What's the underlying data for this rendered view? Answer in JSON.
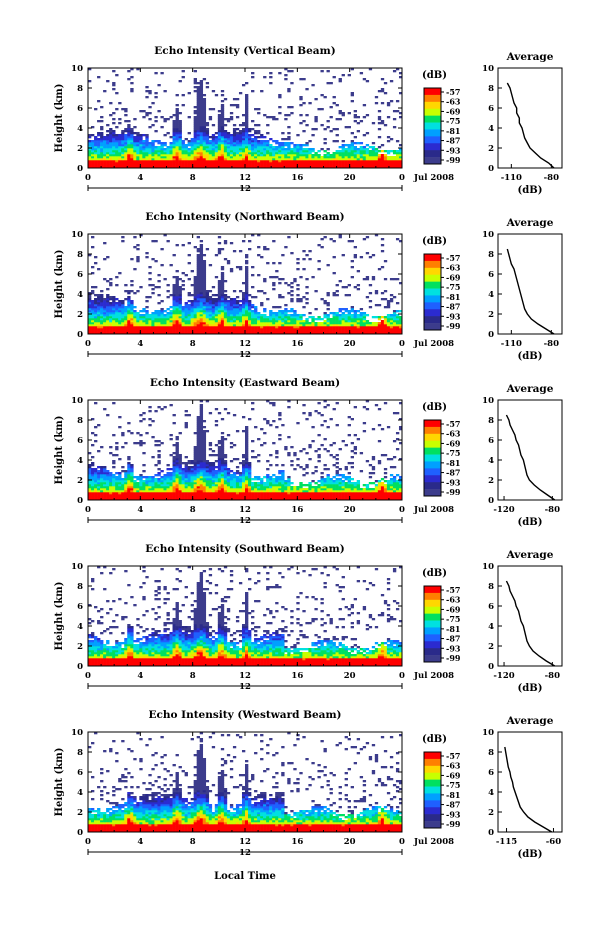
{
  "figure": {
    "xlabel": "Local Time",
    "date_label": "Jul 2008",
    "date_tick": "12",
    "colorbar_unit": "(dB)",
    "colorbar_ticks": [
      "-57",
      "-63",
      "-69",
      "-75",
      "-81",
      "-87",
      "-93",
      "-99"
    ],
    "colorbar_colors": [
      "#ff0000",
      "#ff7f00",
      "#ffd700",
      "#c8ff00",
      "#00e060",
      "#00e0e0",
      "#00a0ff",
      "#1f60ff",
      "#2b2bd0",
      "#2a2a8a",
      "#3c3c8c"
    ],
    "side_title": "Average",
    "side_xlabel": "(dB)"
  },
  "chart_data": [
    {
      "type": "heatmap",
      "title": "Echo Intensity (Vertical Beam)",
      "ylabel": "Height (km)",
      "x_ticks": [
        "0",
        "4",
        "8",
        "12",
        "16",
        "20",
        "0"
      ],
      "y_ticks": [
        "0",
        "2",
        "4",
        "6",
        "8",
        "10"
      ],
      "xlim": [
        0,
        24
      ],
      "ylim": [
        0,
        10
      ],
      "profile": {
        "x_ticks": [
          "-110",
          "-80"
        ],
        "xlim": [
          -120,
          -72
        ],
        "height": [
          0,
          0.5,
          1,
          1.5,
          2,
          2.5,
          3,
          3.5,
          4,
          4.5,
          5,
          5.5,
          6,
          6.5,
          7,
          7.5,
          8,
          8.5
        ],
        "values": [
          -78,
          -82,
          -88,
          -92,
          -96,
          -98,
          -100,
          -101,
          -102,
          -104,
          -104,
          -106,
          -106,
          -108,
          -109,
          -110,
          -111,
          -113
        ]
      }
    },
    {
      "type": "heatmap",
      "title": "Echo Intensity (Northward Beam)",
      "ylabel": "Height (km)",
      "x_ticks": [
        "0",
        "4",
        "8",
        "12",
        "16",
        "20",
        "0"
      ],
      "y_ticks": [
        "0",
        "2",
        "4",
        "6",
        "8",
        "10"
      ],
      "xlim": [
        0,
        24
      ],
      "ylim": [
        0,
        10
      ],
      "profile": {
        "x_ticks": [
          "-110",
          "-80"
        ],
        "xlim": [
          -120,
          -72
        ],
        "height": [
          0,
          0.5,
          1,
          1.5,
          2,
          2.5,
          3,
          3.5,
          4,
          4.5,
          5,
          5.5,
          6,
          6.5,
          7,
          7.5,
          8,
          8.5
        ],
        "values": [
          -78,
          -84,
          -90,
          -95,
          -98,
          -100,
          -101,
          -102,
          -103,
          -104,
          -105,
          -106,
          -107,
          -108,
          -110,
          -111,
          -112,
          -113
        ]
      }
    },
    {
      "type": "heatmap",
      "title": "Echo Intensity (Eastward Beam)",
      "ylabel": "Height (km)",
      "x_ticks": [
        "0",
        "4",
        "8",
        "12",
        "16",
        "20",
        "0"
      ],
      "y_ticks": [
        "0",
        "2",
        "4",
        "6",
        "8",
        "10"
      ],
      "xlim": [
        0,
        24
      ],
      "ylim": [
        0,
        10
      ],
      "profile": {
        "x_ticks": [
          "-120",
          "-80"
        ],
        "xlim": [
          -125,
          -72
        ],
        "height": [
          0,
          0.5,
          1,
          1.5,
          2,
          2.5,
          3,
          3.5,
          4,
          4.5,
          5,
          5.5,
          6,
          6.5,
          7,
          7.5,
          8,
          8.5
        ],
        "values": [
          -78,
          -84,
          -90,
          -95,
          -99,
          -101,
          -102,
          -103,
          -104,
          -106,
          -107,
          -108,
          -110,
          -111,
          -113,
          -115,
          -116,
          -118
        ]
      }
    },
    {
      "type": "heatmap",
      "title": "Echo Intensity (Southward Beam)",
      "ylabel": "Height (km)",
      "x_ticks": [
        "0",
        "4",
        "8",
        "12",
        "16",
        "20",
        "0"
      ],
      "y_ticks": [
        "0",
        "2",
        "4",
        "6",
        "8",
        "10"
      ],
      "xlim": [
        0,
        24
      ],
      "ylim": [
        0,
        10
      ],
      "profile": {
        "x_ticks": [
          "-120",
          "-80"
        ],
        "xlim": [
          -125,
          -72
        ],
        "height": [
          0,
          0.5,
          1,
          1.5,
          2,
          2.5,
          3,
          3.5,
          4,
          4.5,
          5,
          5.5,
          6,
          6.5,
          7,
          7.5,
          8,
          8.5
        ],
        "values": [
          -78,
          -85,
          -91,
          -96,
          -99,
          -101,
          -102,
          -103,
          -104,
          -106,
          -107,
          -108,
          -110,
          -111,
          -113,
          -115,
          -116,
          -118
        ]
      }
    },
    {
      "type": "heatmap",
      "title": "Echo Intensity (Westward Beam)",
      "ylabel": "Height (km)",
      "x_ticks": [
        "0",
        "4",
        "8",
        "12",
        "16",
        "20",
        "0"
      ],
      "y_ticks": [
        "0",
        "2",
        "4",
        "6",
        "8",
        "10"
      ],
      "xlim": [
        0,
        24
      ],
      "ylim": [
        0,
        10
      ],
      "profile": {
        "x_ticks": [
          "-115",
          "-60"
        ],
        "xlim": [
          -125,
          -50
        ],
        "height": [
          0,
          0.5,
          1,
          1.5,
          2,
          2.5,
          3,
          3.5,
          4,
          4.5,
          5,
          5.5,
          6,
          6.5,
          7,
          7.5,
          8,
          8.5
        ],
        "values": [
          -62,
          -72,
          -82,
          -90,
          -95,
          -99,
          -101,
          -103,
          -105,
          -107,
          -108,
          -110,
          -111,
          -113,
          -114,
          -115,
          -116,
          -117
        ]
      }
    }
  ]
}
